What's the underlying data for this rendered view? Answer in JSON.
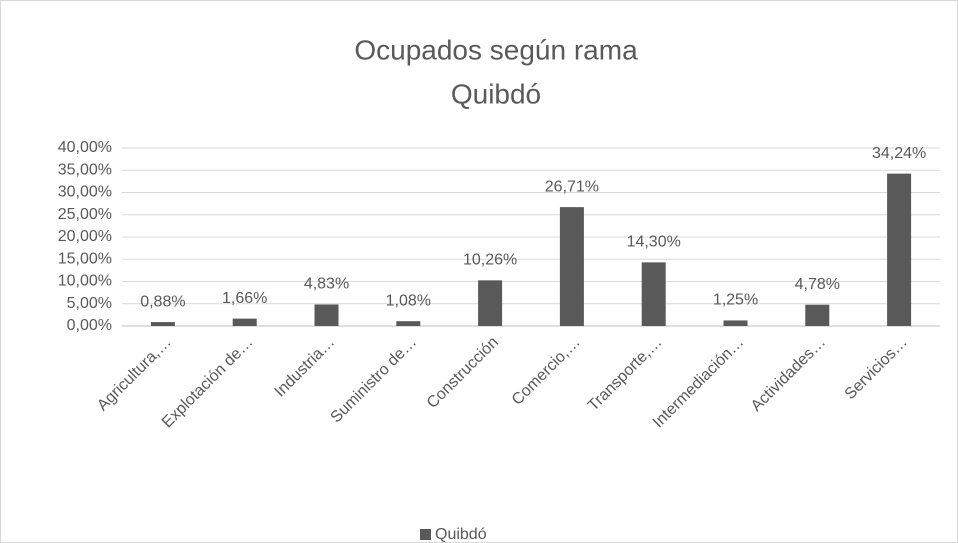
{
  "chart_data": {
    "type": "bar",
    "title": [
      "Ocupados según rama",
      "Quibdó"
    ],
    "categories": [
      "Agricultura,…",
      "Explotación de…",
      "Industria…",
      "Suministro de…",
      "Construcción",
      "Comercio,…",
      "Transporte,…",
      "Intermediación…",
      "Actividades…",
      "Servicios…"
    ],
    "series": [
      {
        "name": "Quibdó",
        "color": "#595959",
        "values": [
          0.88,
          1.66,
          4.83,
          1.08,
          10.26,
          26.71,
          14.3,
          1.25,
          4.78,
          34.24
        ],
        "value_labels": [
          "0,88%",
          "1,66%",
          "4,83%",
          "1,08%",
          "10,26%",
          "26,71%",
          "14,30%",
          "1,25%",
          "4,78%",
          "34,24%"
        ]
      }
    ],
    "ylim": [
      0,
      40
    ],
    "yticks": [
      {
        "value": 0,
        "label": "0,00%"
      },
      {
        "value": 5,
        "label": "5,00%"
      },
      {
        "value": 10,
        "label": "10,00%"
      },
      {
        "value": 15,
        "label": "15,00%"
      },
      {
        "value": 20,
        "label": "20,00%"
      },
      {
        "value": 25,
        "label": "25,00%"
      },
      {
        "value": 30,
        "label": "30,00%"
      },
      {
        "value": 35,
        "label": "35,00%"
      },
      {
        "value": 40,
        "label": "40,00%"
      }
    ],
    "grid": true,
    "legend": "bottom"
  }
}
